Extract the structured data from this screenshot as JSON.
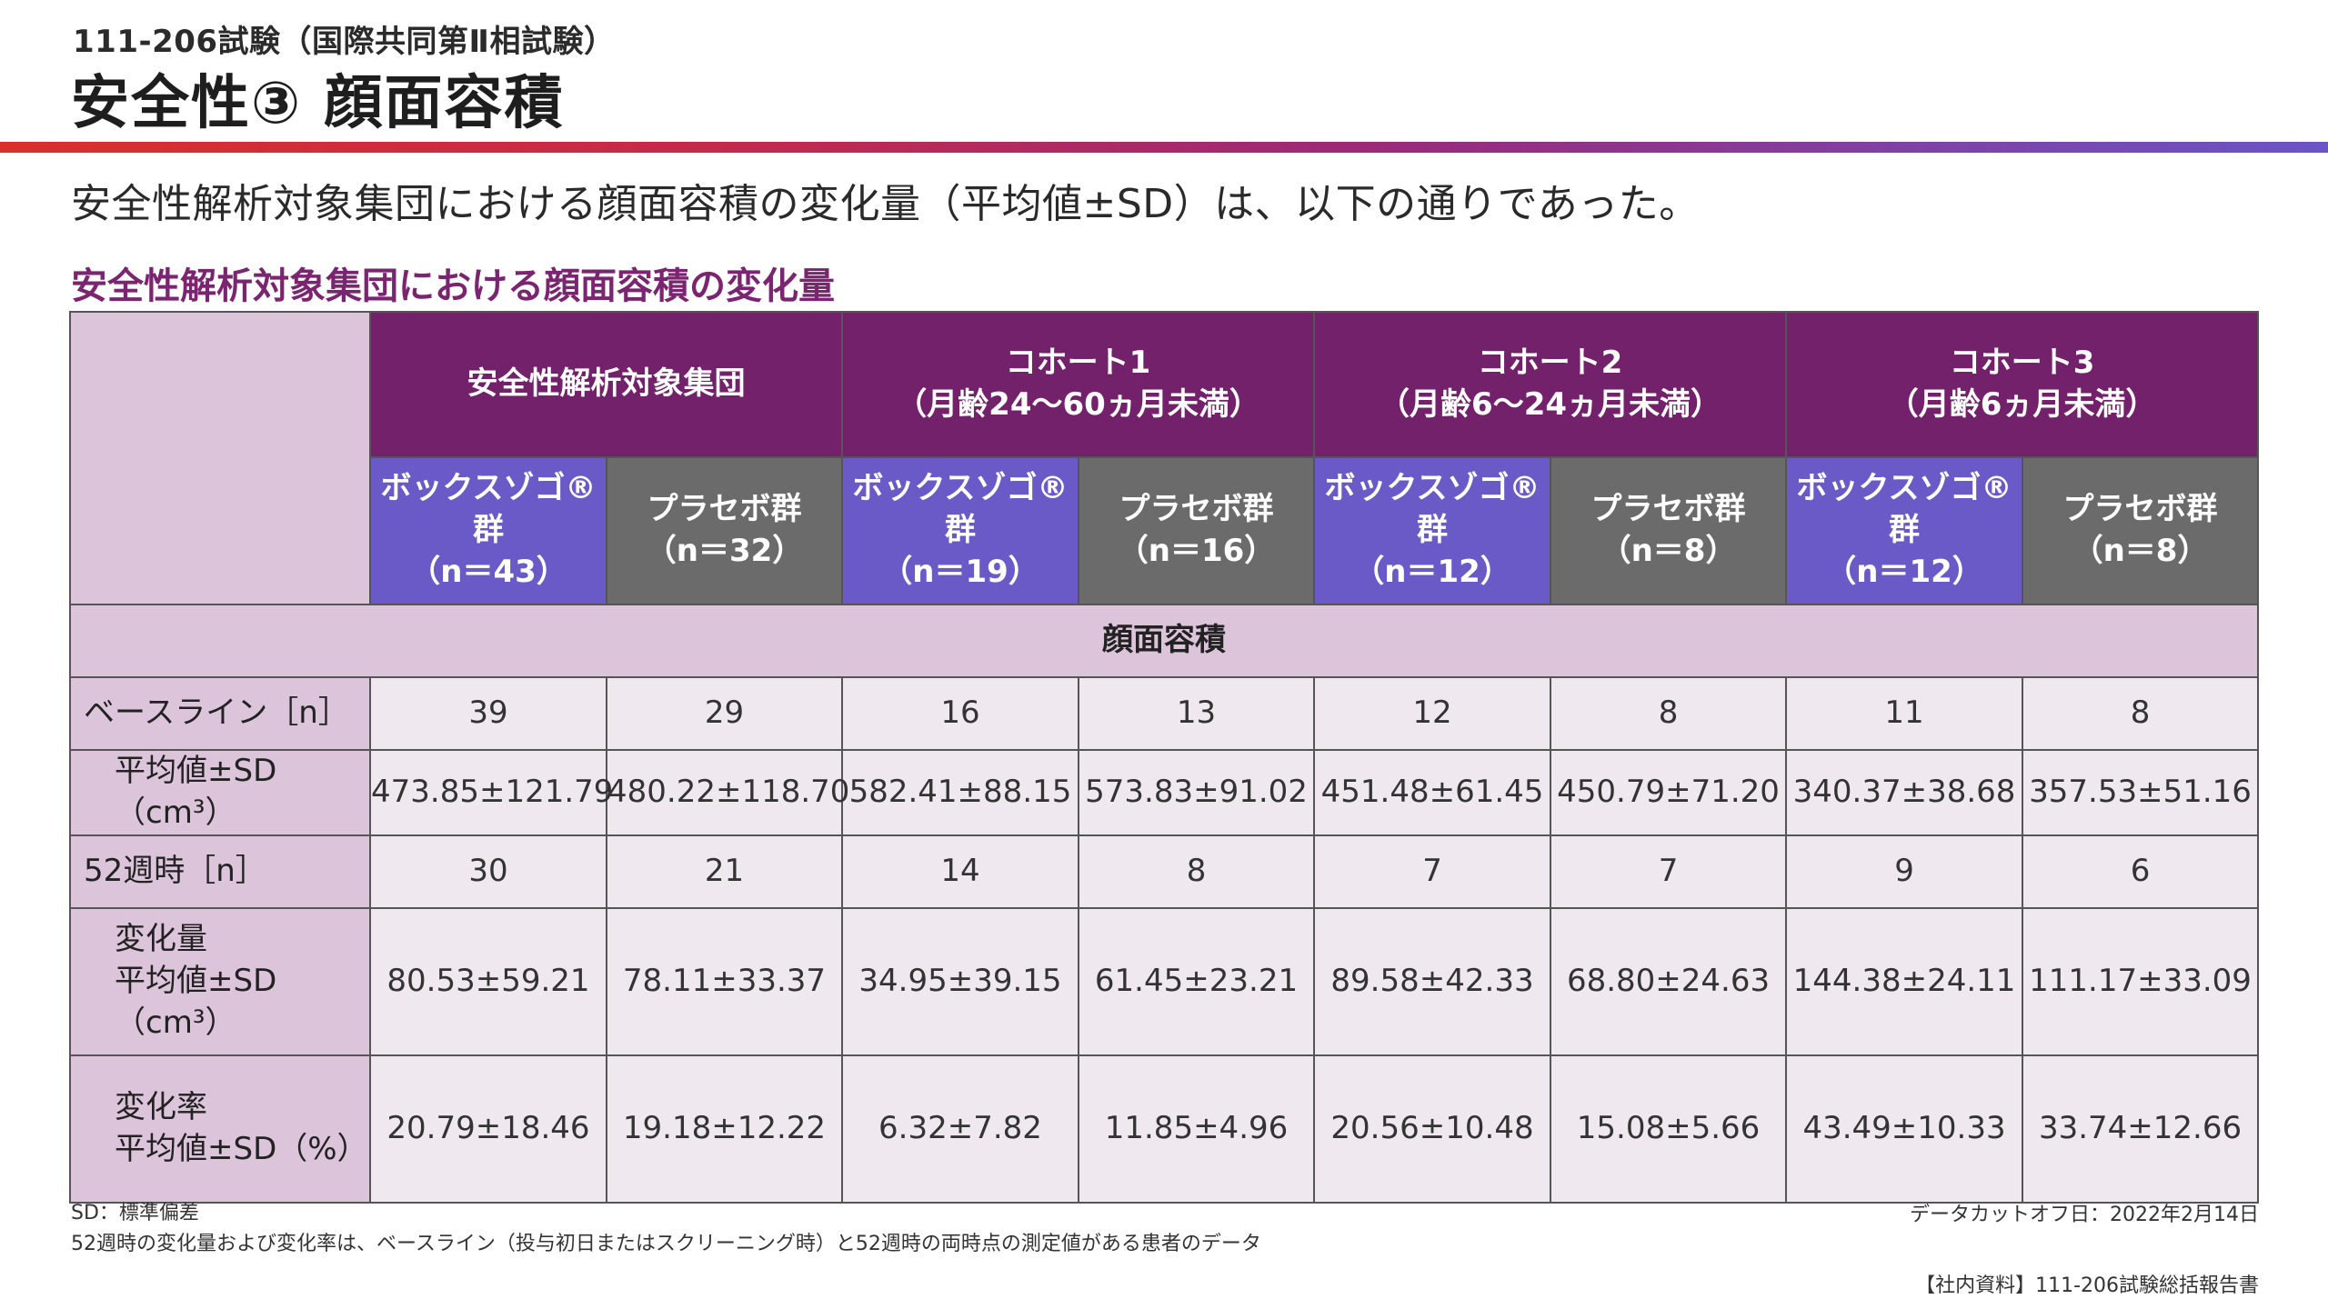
{
  "header": {
    "study": "111-206試験（国際共同第Ⅱ相試験）",
    "title": "安全性③ 顔面容積"
  },
  "lead_text": "安全性解析対象集団における顔面容積の変化量（平均値±SD）は、以下の通りであった。",
  "table": {
    "caption": "安全性解析対象集団における顔面容積の変化量",
    "groups": [
      {
        "line1": "安全性解析対象集団",
        "line2": ""
      },
      {
        "line1": "コホート1",
        "line2": "（月齢24〜60ヵ月未満）"
      },
      {
        "line1": "コホート2",
        "line2": "（月齢6〜24ヵ月未満）"
      },
      {
        "line1": "コホート3",
        "line2": "（月齢6ヵ月未満）"
      }
    ],
    "arms": [
      {
        "name": "ボックスゾゴ®群",
        "n": "（n＝43）"
      },
      {
        "name": "プラセボ群",
        "n": "（n＝32）"
      },
      {
        "name": "ボックスゾゴ®群",
        "n": "（n＝19）"
      },
      {
        "name": "プラセボ群",
        "n": "（n＝16）"
      },
      {
        "name": "ボックスゾゴ®群",
        "n": "（n＝12）"
      },
      {
        "name": "プラセボ群",
        "n": "（n＝8）"
      },
      {
        "name": "ボックスゾゴ®群",
        "n": "（n＝12）"
      },
      {
        "name": "プラセボ群",
        "n": "（n＝8）"
      }
    ],
    "section_label": "顔面容積",
    "rows": [
      {
        "label1": "ベースライン［n］",
        "label2": "",
        "values": [
          "39",
          "29",
          "16",
          "13",
          "12",
          "8",
          "11",
          "8"
        ]
      },
      {
        "label1": "平均値±SD（cm³）",
        "label2": "",
        "values": [
          "473.85±121.79",
          "480.22±118.70",
          "582.41±88.15",
          "573.83±91.02",
          "451.48±61.45",
          "450.79±71.20",
          "340.37±38.68",
          "357.53±51.16"
        ]
      },
      {
        "label1": "52週時［n］",
        "label2": "",
        "values": [
          "30",
          "21",
          "14",
          "8",
          "7",
          "7",
          "9",
          "6"
        ]
      },
      {
        "label1": "変化量",
        "label2": "平均値±SD（cm³）",
        "values": [
          "80.53±59.21",
          "78.11±33.37",
          "34.95±39.15",
          "61.45±23.21",
          "89.58±42.33",
          "68.80±24.63",
          "144.38±24.11",
          "111.17±33.09"
        ]
      },
      {
        "label1": "変化率",
        "label2": "平均値±SD（%）",
        "values": [
          "20.79±18.46",
          "19.18±12.22",
          "6.32±7.82",
          "11.85±4.96",
          "20.56±10.48",
          "15.08±5.66",
          "43.49±10.33",
          "33.74±12.66"
        ]
      }
    ]
  },
  "footnotes": {
    "sd": "SD：標準偏差",
    "note": "52週時の変化量および変化率は、ベースライン（投与初日またはスクリーニング時）と52週時の両時点の測定値がある患者のデータ",
    "cutoff": "データカットオフ日：2022年2月14日",
    "source": "【社内資料】111-206試験総括報告書"
  },
  "colors": {
    "group_header": "#73216b",
    "voxzogo_header": "#6a5ac7",
    "placebo_header": "#6b6b6b",
    "label_bg": "#dcc5db",
    "cell_bg": "#efe8ee",
    "caption": "#7b2470"
  }
}
